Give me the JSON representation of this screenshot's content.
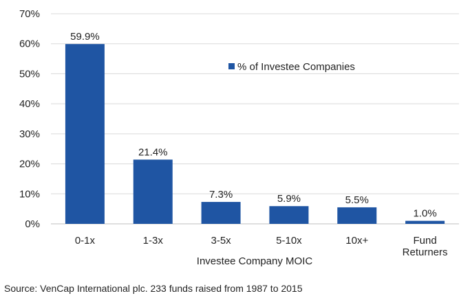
{
  "chart_data": {
    "type": "bar",
    "categories": [
      "0-1x",
      "1-3x",
      "3-5x",
      "5-10x",
      "10x+",
      "Fund Returners"
    ],
    "series": [
      {
        "name": "% of Investee Companies",
        "values": [
          59.9,
          21.4,
          7.3,
          5.9,
          5.5,
          1.0
        ],
        "color": "#1f55a3"
      }
    ],
    "data_labels": [
      "59.9%",
      "21.4%",
      "7.3%",
      "5.9%",
      "5.5%",
      "1.0%"
    ],
    "yticks": [
      "0%",
      "10%",
      "20%",
      "30%",
      "40%",
      "50%",
      "60%",
      "70%"
    ],
    "ylim": [
      0,
      70
    ],
    "xlabel": "Investee Company MOIC",
    "ylabel": "",
    "title": "",
    "grid": true,
    "legend_position": "top-center"
  },
  "source": "Source:  VenCap International plc.  233 funds raised from 1987 to 2015"
}
